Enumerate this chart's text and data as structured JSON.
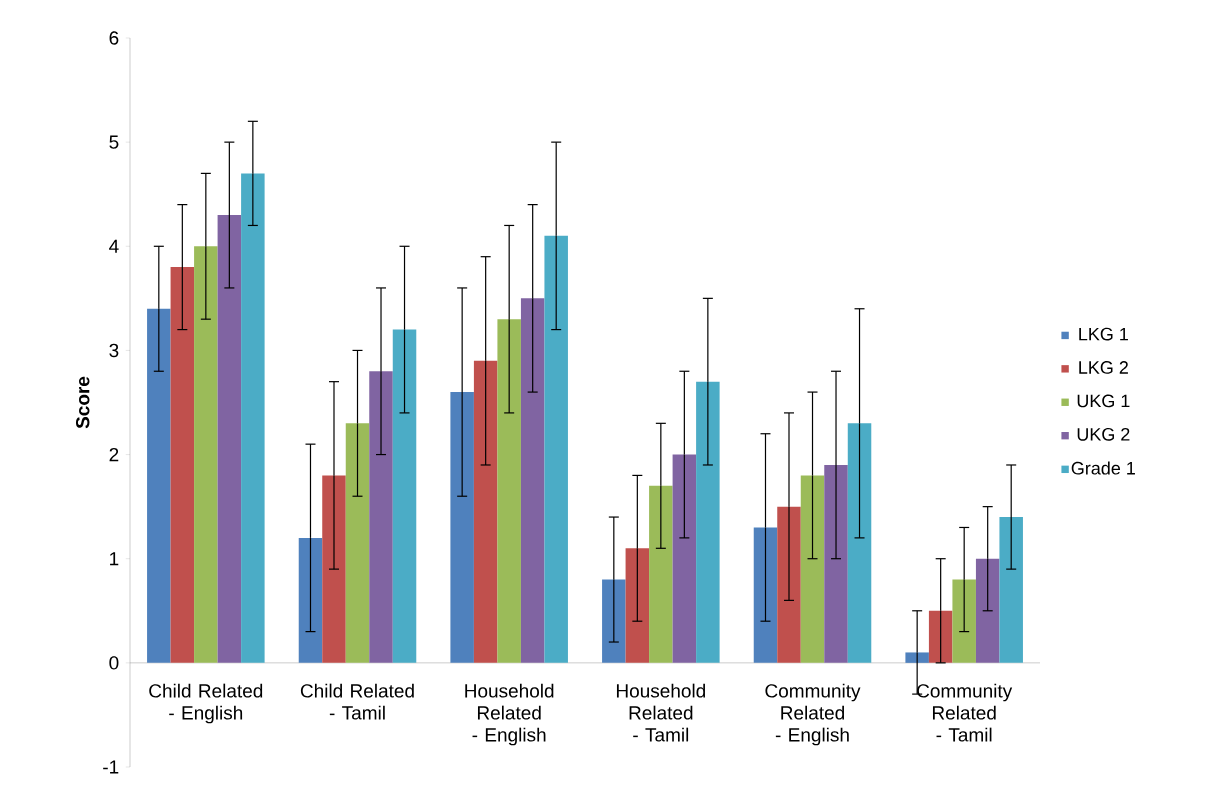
{
  "chart_data": {
    "type": "bar",
    "ylabel": "Score",
    "categories": [
      "Child Related - English",
      "Child Related - Tamil",
      "Household Related - English",
      "Household Related - Tamil",
      "Community Related - English",
      "Community Related - Tamil"
    ],
    "series": [
      {
        "name": "LKG 1",
        "color": "#4f81bd",
        "values": [
          3.4,
          1.2,
          2.6,
          0.8,
          1.3,
          0.1
        ],
        "errors": [
          0.6,
          0.9,
          1.0,
          0.6,
          0.9,
          0.4
        ]
      },
      {
        "name": "LKG 2",
        "color": "#c0504d",
        "values": [
          3.8,
          1.8,
          2.9,
          1.1,
          1.5,
          0.5
        ],
        "errors": [
          0.6,
          0.9,
          1.0,
          0.7,
          0.9,
          0.5
        ]
      },
      {
        "name": "UKG 1",
        "color": "#9bbb59",
        "values": [
          4.0,
          2.3,
          3.3,
          1.7,
          1.8,
          0.8
        ],
        "errors": [
          0.7,
          0.7,
          0.9,
          0.6,
          0.8,
          0.5
        ]
      },
      {
        "name": "UKG 2",
        "color": "#8064a2",
        "values": [
          4.3,
          2.8,
          3.5,
          2.0,
          1.9,
          1.0
        ],
        "errors": [
          0.7,
          0.8,
          0.9,
          0.8,
          0.9,
          0.5
        ]
      },
      {
        "name": "Grade 1",
        "color": "#4bacc6",
        "values": [
          4.7,
          3.2,
          4.1,
          2.7,
          2.3,
          1.4
        ],
        "errors": [
          0.5,
          0.8,
          0.9,
          0.8,
          1.1,
          0.5
        ]
      }
    ],
    "ylim": [
      -1,
      6
    ],
    "yticks": [
      -1,
      0,
      1,
      2,
      3,
      4,
      5,
      6
    ],
    "legend": "right"
  }
}
